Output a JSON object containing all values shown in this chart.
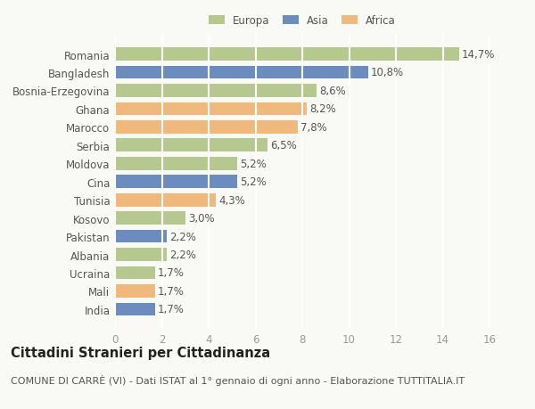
{
  "categories": [
    "Romania",
    "Bangladesh",
    "Bosnia-Erzegovina",
    "Ghana",
    "Marocco",
    "Serbia",
    "Moldova",
    "Cina",
    "Tunisia",
    "Kosovo",
    "Pakistan",
    "Albania",
    "Ucraina",
    "Mali",
    "India"
  ],
  "values": [
    14.7,
    10.8,
    8.6,
    8.2,
    7.8,
    6.5,
    5.2,
    5.2,
    4.3,
    3.0,
    2.2,
    2.2,
    1.7,
    1.7,
    1.7
  ],
  "labels": [
    "14,7%",
    "10,8%",
    "8,6%",
    "8,2%",
    "7,8%",
    "6,5%",
    "5,2%",
    "5,2%",
    "4,3%",
    "3,0%",
    "2,2%",
    "2,2%",
    "1,7%",
    "1,7%",
    "1,7%"
  ],
  "continents": [
    "Europa",
    "Asia",
    "Europa",
    "Africa",
    "Africa",
    "Europa",
    "Europa",
    "Asia",
    "Africa",
    "Europa",
    "Asia",
    "Europa",
    "Europa",
    "Africa",
    "Asia"
  ],
  "colors": {
    "Europa": "#b5c98e",
    "Asia": "#6b8cbe",
    "Africa": "#f0b87a"
  },
  "legend_labels": [
    "Europa",
    "Asia",
    "Africa"
  ],
  "xlim": [
    0,
    16
  ],
  "xticks": [
    0,
    2,
    4,
    6,
    8,
    10,
    12,
    14,
    16
  ],
  "title": "Cittadini Stranieri per Cittadinanza",
  "subtitle": "COMUNE DI CARRÈ (VI) - Dati ISTAT al 1° gennaio di ogni anno - Elaborazione TUTTITALIA.IT",
  "background_color": "#f9f9f6",
  "bar_height": 0.72,
  "label_fontsize": 8.5,
  "tick_fontsize": 8.5,
  "title_fontsize": 10.5,
  "subtitle_fontsize": 8.0,
  "grid_color": "#ffffff",
  "grid_linewidth": 1.5
}
